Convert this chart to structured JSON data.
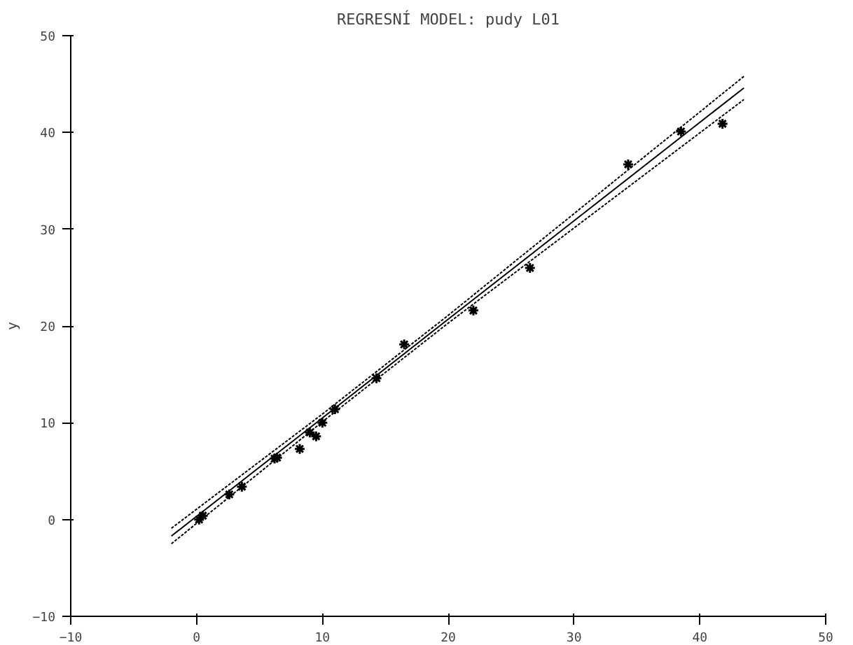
{
  "chart_data": {
    "type": "scatter",
    "title": "REGRESNÍ MODEL: pudy L01",
    "ylabel": "y",
    "xlim": [
      -10,
      50
    ],
    "ylim": [
      -10,
      50
    ],
    "xticks": [
      -10,
      0,
      10,
      20,
      30,
      40,
      50
    ],
    "yticks": [
      -10,
      0,
      10,
      20,
      30,
      40,
      50
    ],
    "grid": false,
    "series": [
      {
        "marker": "cross",
        "color": "#000000",
        "x": [
          0.2,
          0.5,
          2.6,
          3.6,
          6.2,
          6.4,
          8.2,
          9.5,
          9.0,
          10.0,
          11.0,
          14.3,
          16.5,
          22.0,
          26.5,
          34.3,
          38.5,
          41.8
        ],
        "values": [
          0.0,
          0.4,
          2.6,
          3.4,
          6.3,
          6.4,
          7.3,
          8.6,
          9.0,
          10.0,
          11.4,
          14.6,
          18.1,
          21.6,
          26.0,
          36.7,
          40.1,
          40.9
        ]
      },
      {
        "type": "line",
        "line_style": "solid",
        "color": "#000000",
        "x": [
          -2,
          10,
          20,
          43.5
        ],
        "values": [
          -1.7,
          10.5,
          20.7,
          44.6
        ]
      },
      {
        "type": "line",
        "line_style": "dashed",
        "color": "#000000",
        "x": [
          -2,
          10,
          20,
          43.5
        ],
        "values": [
          -2.5,
          10.1,
          20.3,
          43.4
        ]
      },
      {
        "type": "line",
        "line_style": "dashed",
        "color": "#000000",
        "x": [
          -2,
          10,
          20,
          43.5
        ],
        "values": [
          -0.9,
          10.9,
          21.1,
          45.8
        ]
      }
    ]
  }
}
